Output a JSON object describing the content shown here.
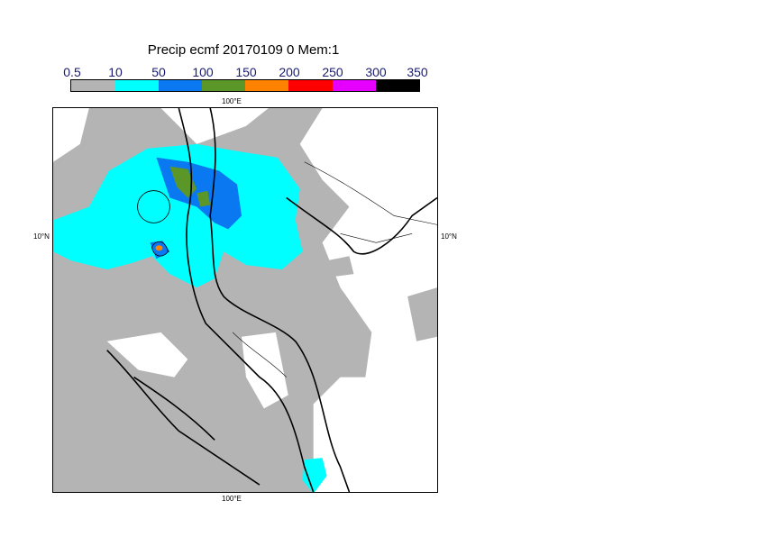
{
  "title": "Precip ecmf 20170109 0 Mem:1",
  "legend": {
    "ticks": [
      "0.5",
      "10",
      "50",
      "100",
      "150",
      "200",
      "250",
      "300",
      "350"
    ],
    "colors": [
      "#b4b4b4",
      "#00ffff",
      "#0a78f0",
      "#5a9628",
      "#ff8200",
      "#ff0000",
      "#e600ff",
      "#000000"
    ]
  },
  "map": {
    "lon_label": "100°E",
    "lat_label": "10°N",
    "land_line": "#000000",
    "sea": "#ffffff"
  }
}
